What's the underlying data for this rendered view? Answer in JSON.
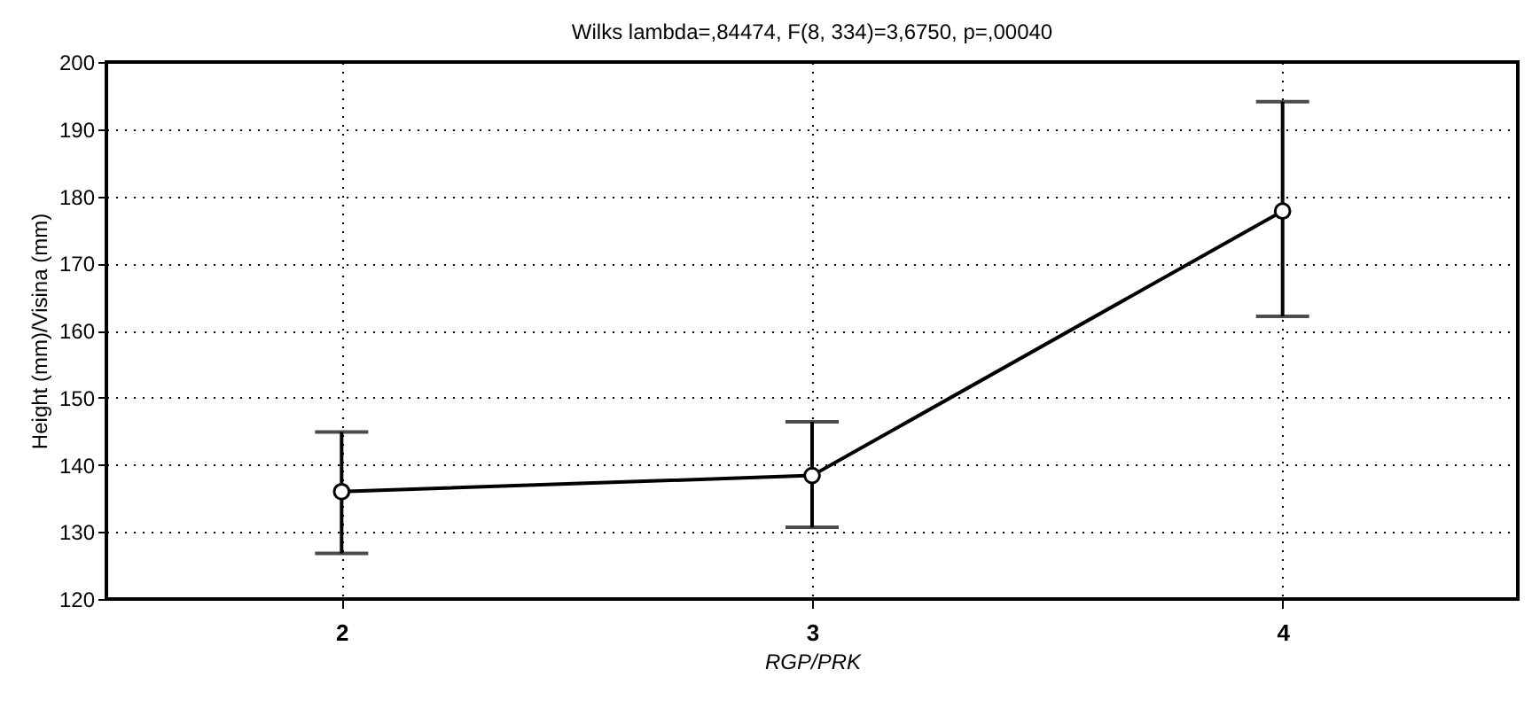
{
  "chart_data": {
    "type": "line",
    "title": "Wilks lambda=,84474, F(8, 334)=3,6750, p=,00040",
    "xlabel": "RGP/PRK",
    "ylabel": "Height (mm)/Visina (mm)",
    "x": [
      2,
      3,
      4
    ],
    "xlim": [
      1.5,
      4.5
    ],
    "xticks": [
      2,
      3,
      4
    ],
    "ylim": [
      120,
      200
    ],
    "yticks": [
      120,
      130,
      140,
      150,
      160,
      170,
      180,
      190,
      200
    ],
    "series": [
      {
        "color": "#000000",
        "values": [
          136,
          138.4,
          177.8
        ],
        "errors": [
          [
            126.8,
            144.9
          ],
          [
            130.7,
            146.4
          ],
          [
            162.1,
            194.1
          ]
        ]
      }
    ],
    "grid": true,
    "marker": "circle",
    "line_style": "solid"
  }
}
